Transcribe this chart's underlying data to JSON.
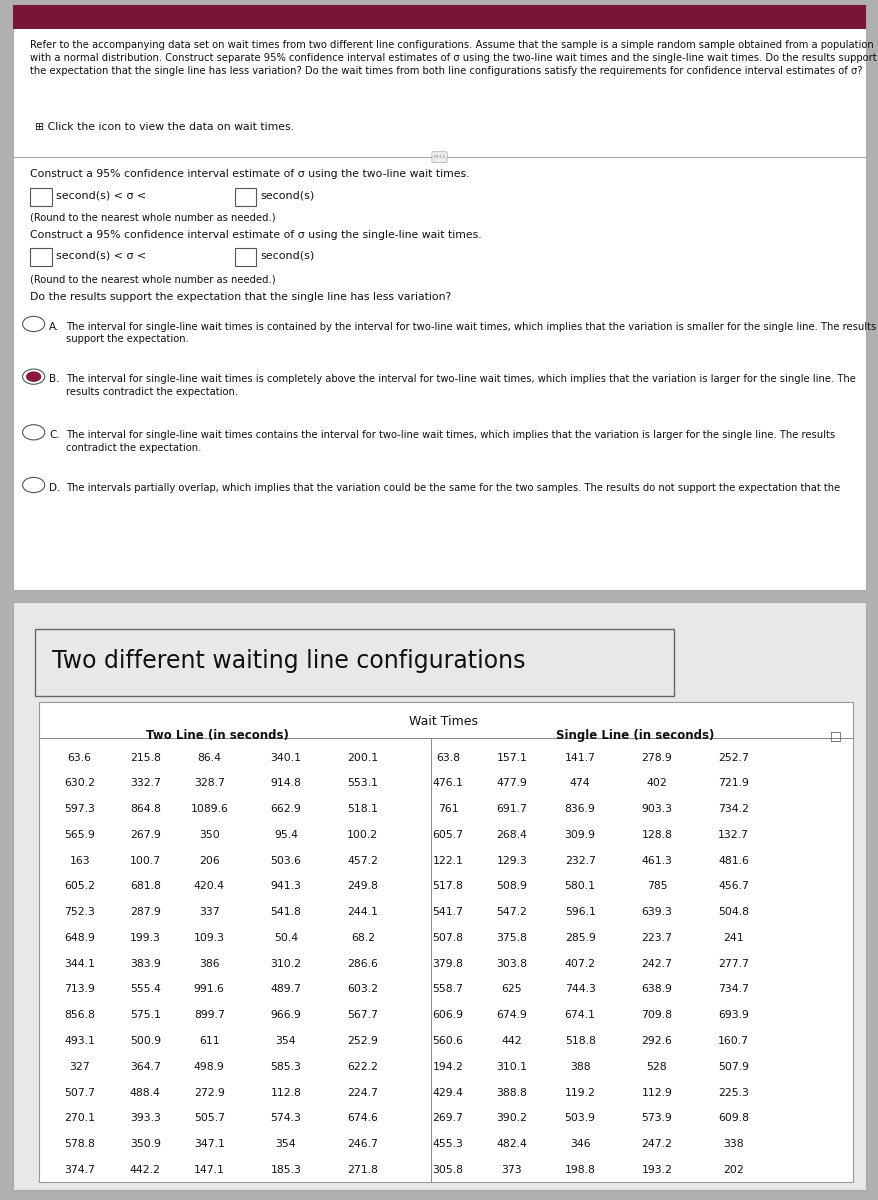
{
  "top_section": {
    "background_color": "#ffffff",
    "header_color": "#7a1535",
    "question_text": "Refer to the accompanying data set on wait times from two different line configurations. Assume that the sample is a simple random sample obtained from a population\nwith a normal distribution. Construct separate 95% confidence interval estimates of σ using the two-line wait times and the single-line wait times. Do the results support\nthe expectation that the single line has less variation? Do the wait times from both line configurations satisfy the requirements for confidence interval estimates of σ?",
    "icon_text": "⊞ Click the icon to view the data on wait times.",
    "construct_two_line": "Construct a 95% confidence interval estimate of σ using the two-line wait times.",
    "interval_two_line": "□ second(s) < σ <□ second(s)",
    "round_note": "(Round to the nearest whole number as needed.)",
    "construct_single_line": "Construct a 95% confidence interval estimate of σ using the single-line wait times.",
    "interval_single_line": "□ second(s) < σ <□ second(s)",
    "round_note2": "(Round to the nearest whole number as needed.)",
    "question_variation": "Do the results support the expectation that the single line has less variation?",
    "options": [
      {
        "label": "A",
        "selected": false,
        "text": "The interval for single-line wait times is contained by the interval for two-line wait times, which implies that the variation is smaller for the single line. The results\nsupport the expectation."
      },
      {
        "label": "B",
        "selected": true,
        "text": "The interval for single-line wait times is completely above the interval for two-line wait times, which implies that the variation is larger for the single line. The\nresults contradict the expectation."
      },
      {
        "label": "C",
        "selected": false,
        "text": "The interval for single-line wait times contains the interval for two-line wait times, which implies that the variation is larger for the single line. The results\ncontradict the expectation."
      },
      {
        "label": "D",
        "selected": false,
        "text": "The intervals partially overlap, which implies that the variation could be the same for the two samples. The results do not support the expectation that the"
      }
    ]
  },
  "bottom_section": {
    "title": "Two different waiting line configurations",
    "table_title": "Wait Times",
    "col_header_left": "Two Line (in seconds)",
    "col_header_right": "Single Line (in seconds)",
    "two_line_data": [
      [
        63.6,
        215.8,
        86.4,
        340.1,
        200.1
      ],
      [
        630.2,
        332.7,
        328.7,
        914.8,
        553.1
      ],
      [
        597.3,
        864.8,
        1089.6,
        662.9,
        518.1
      ],
      [
        565.9,
        267.9,
        350.0,
        95.4,
        100.2
      ],
      [
        163.0,
        100.7,
        206.0,
        503.6,
        457.2
      ],
      [
        605.2,
        681.8,
        420.4,
        941.3,
        249.8
      ],
      [
        752.3,
        287.9,
        337.0,
        541.8,
        244.1
      ],
      [
        648.9,
        199.3,
        109.3,
        50.4,
        68.2
      ],
      [
        344.1,
        383.9,
        386.0,
        310.2,
        286.6
      ],
      [
        713.9,
        555.4,
        991.6,
        489.7,
        603.2
      ],
      [
        856.8,
        575.1,
        899.7,
        966.9,
        567.7
      ],
      [
        493.1,
        500.9,
        611.0,
        354.0,
        252.9
      ],
      [
        327.0,
        364.7,
        498.9,
        585.3,
        622.2
      ],
      [
        507.7,
        488.4,
        272.9,
        112.8,
        224.7
      ],
      [
        270.1,
        393.3,
        505.7,
        574.3,
        674.6
      ],
      [
        578.8,
        350.9,
        347.1,
        354.0,
        246.7
      ],
      [
        374.7,
        442.2,
        147.1,
        185.3,
        271.8
      ]
    ],
    "single_line_data": [
      [
        63.8,
        157.1,
        141.7,
        278.9,
        252.7
      ],
      [
        476.1,
        477.9,
        474.0,
        402.0,
        721.9
      ],
      [
        761.0,
        691.7,
        836.9,
        903.3,
        734.2
      ],
      [
        605.7,
        268.4,
        309.9,
        128.8,
        132.7
      ],
      [
        122.1,
        129.3,
        232.7,
        461.3,
        481.6
      ],
      [
        517.8,
        508.9,
        580.1,
        785.0,
        456.7
      ],
      [
        541.7,
        547.2,
        596.1,
        639.3,
        504.8
      ],
      [
        507.8,
        375.8,
        285.9,
        223.7,
        241.0
      ],
      [
        379.8,
        303.8,
        407.2,
        242.7,
        277.7
      ],
      [
        558.7,
        625.0,
        744.3,
        638.9,
        734.7
      ],
      [
        606.9,
        674.9,
        674.1,
        709.8,
        693.9
      ],
      [
        560.6,
        442.0,
        518.8,
        292.6,
        160.7
      ],
      [
        194.2,
        310.1,
        388.0,
        528.0,
        507.9
      ],
      [
        429.4,
        388.8,
        119.2,
        112.9,
        225.3
      ],
      [
        269.7,
        390.2,
        503.9,
        573.9,
        609.8
      ],
      [
        455.3,
        482.4,
        346.0,
        247.2,
        338.0
      ],
      [
        305.8,
        373.0,
        198.8,
        193.2,
        202.0
      ]
    ]
  }
}
